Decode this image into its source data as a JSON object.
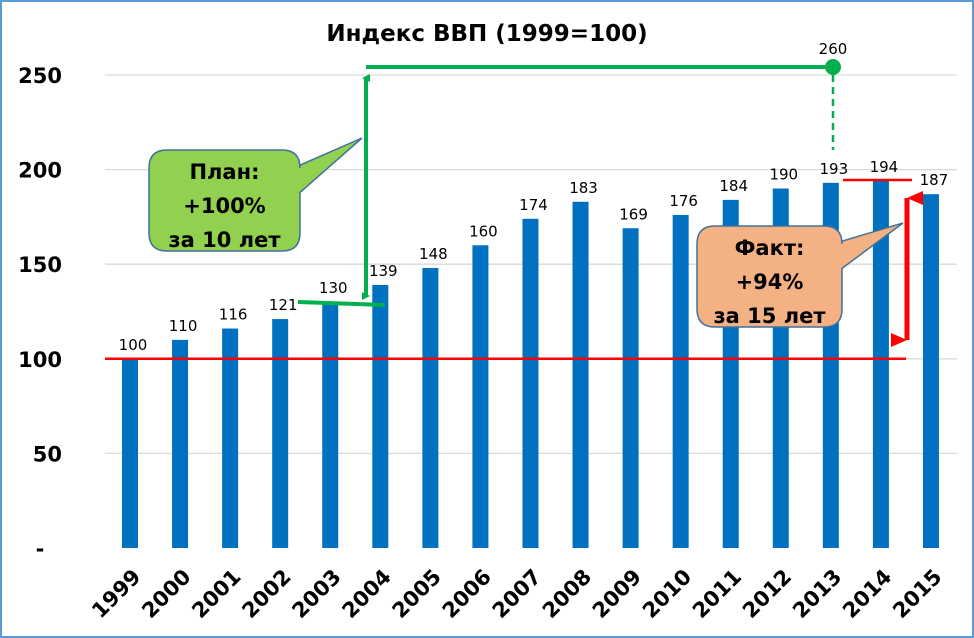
{
  "chart_data": {
    "type": "bar",
    "title": "Индекс ВВП (1999=100)",
    "categories": [
      "1999",
      "2000",
      "2001",
      "2002",
      "2003",
      "2004",
      "2005",
      "2006",
      "2007",
      "2008",
      "2009",
      "2010",
      "2011",
      "2012",
      "2013",
      "2014",
      "2015"
    ],
    "values": [
      100,
      110,
      116,
      121,
      130,
      139,
      148,
      160,
      174,
      183,
      169,
      176,
      184,
      190,
      193,
      194,
      187
    ],
    "ylim": [
      0,
      250
    ],
    "yticks": [
      0,
      50,
      100,
      150,
      200,
      250
    ],
    "ytick_labels": [
      "-",
      "50",
      "100",
      "150",
      "200",
      "250"
    ],
    "grid": true,
    "bar_color": "#0070c0",
    "annotations": {
      "plan_target_label": "260",
      "plan_color": "#00b050",
      "fact_color": "#ff0000",
      "plan_callout": [
        "План:",
        "+100%",
        "за 10 лет"
      ],
      "plan_callout_color": "#92d050",
      "fact_callout": [
        "Факт:",
        "+94%",
        "за 15 лет"
      ],
      "fact_callout_color": "#f4b183"
    }
  }
}
